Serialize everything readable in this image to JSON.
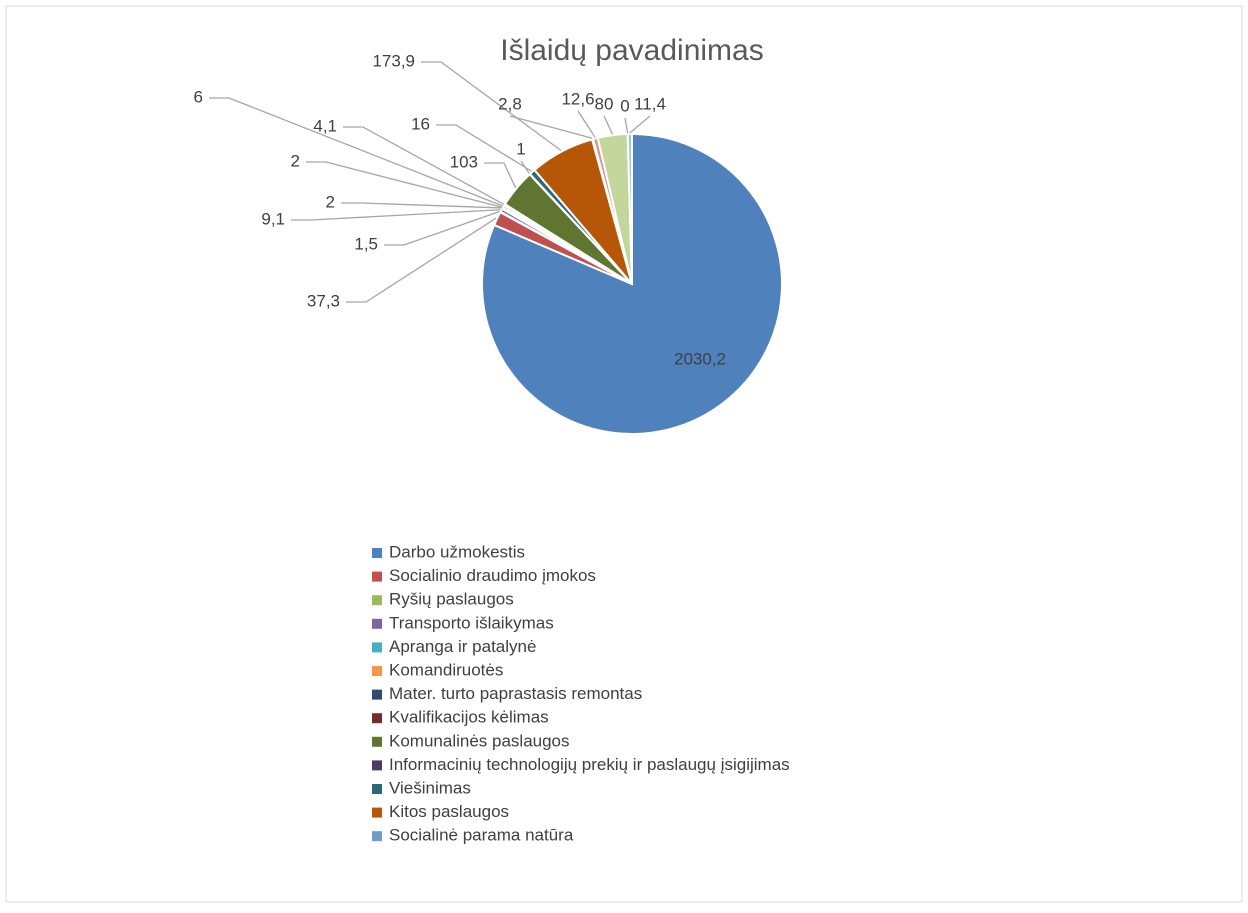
{
  "chart_data": {
    "type": "pie",
    "title": "Išlaidų pavadinimas",
    "categories": [
      "Darbo užmokestis",
      "Socialinio draudimo įmokos",
      "Ryšių paslaugos",
      "Transporto išlaikymas",
      "Apranga ir patalynė",
      "Komandiruotės",
      "Mater. turto paprastasis remontas",
      "Kvalifikacijos kėlimas",
      "Komunalinės paslaugos",
      "Informacinių technologijų prekių ir paslaugų įsigijimas",
      "Viešinimas",
      "Kitos paslaugos",
      "Socialinė parama natūra",
      null,
      null,
      null,
      null
    ],
    "values": [
      2030.2,
      37.3,
      1.5,
      9.1,
      2,
      2,
      6,
      4.1,
      103,
      1,
      16,
      173.9,
      2.8,
      12.6,
      80,
      0,
      11.4
    ],
    "value_labels": [
      "2030,2",
      "37,3",
      "1,5",
      "9,1",
      "2",
      "2",
      "6",
      "4,1",
      "103",
      "1",
      "16",
      "173,9",
      "2,8",
      "12,6",
      "80",
      "0",
      "11,4"
    ],
    "colors": [
      "#4f81bd",
      "#c0504d",
      "#9bbb59",
      "#8064a2",
      "#4bacc6",
      "#f79646",
      "#2c4d75",
      "#772c2a",
      "#5f7530",
      "#4d3b62",
      "#276a7c",
      "#b65708",
      "#729aca",
      "#d99694",
      "#c3d69b",
      "#b3a2c7",
      "#93cddd"
    ],
    "legend": "bottom"
  }
}
